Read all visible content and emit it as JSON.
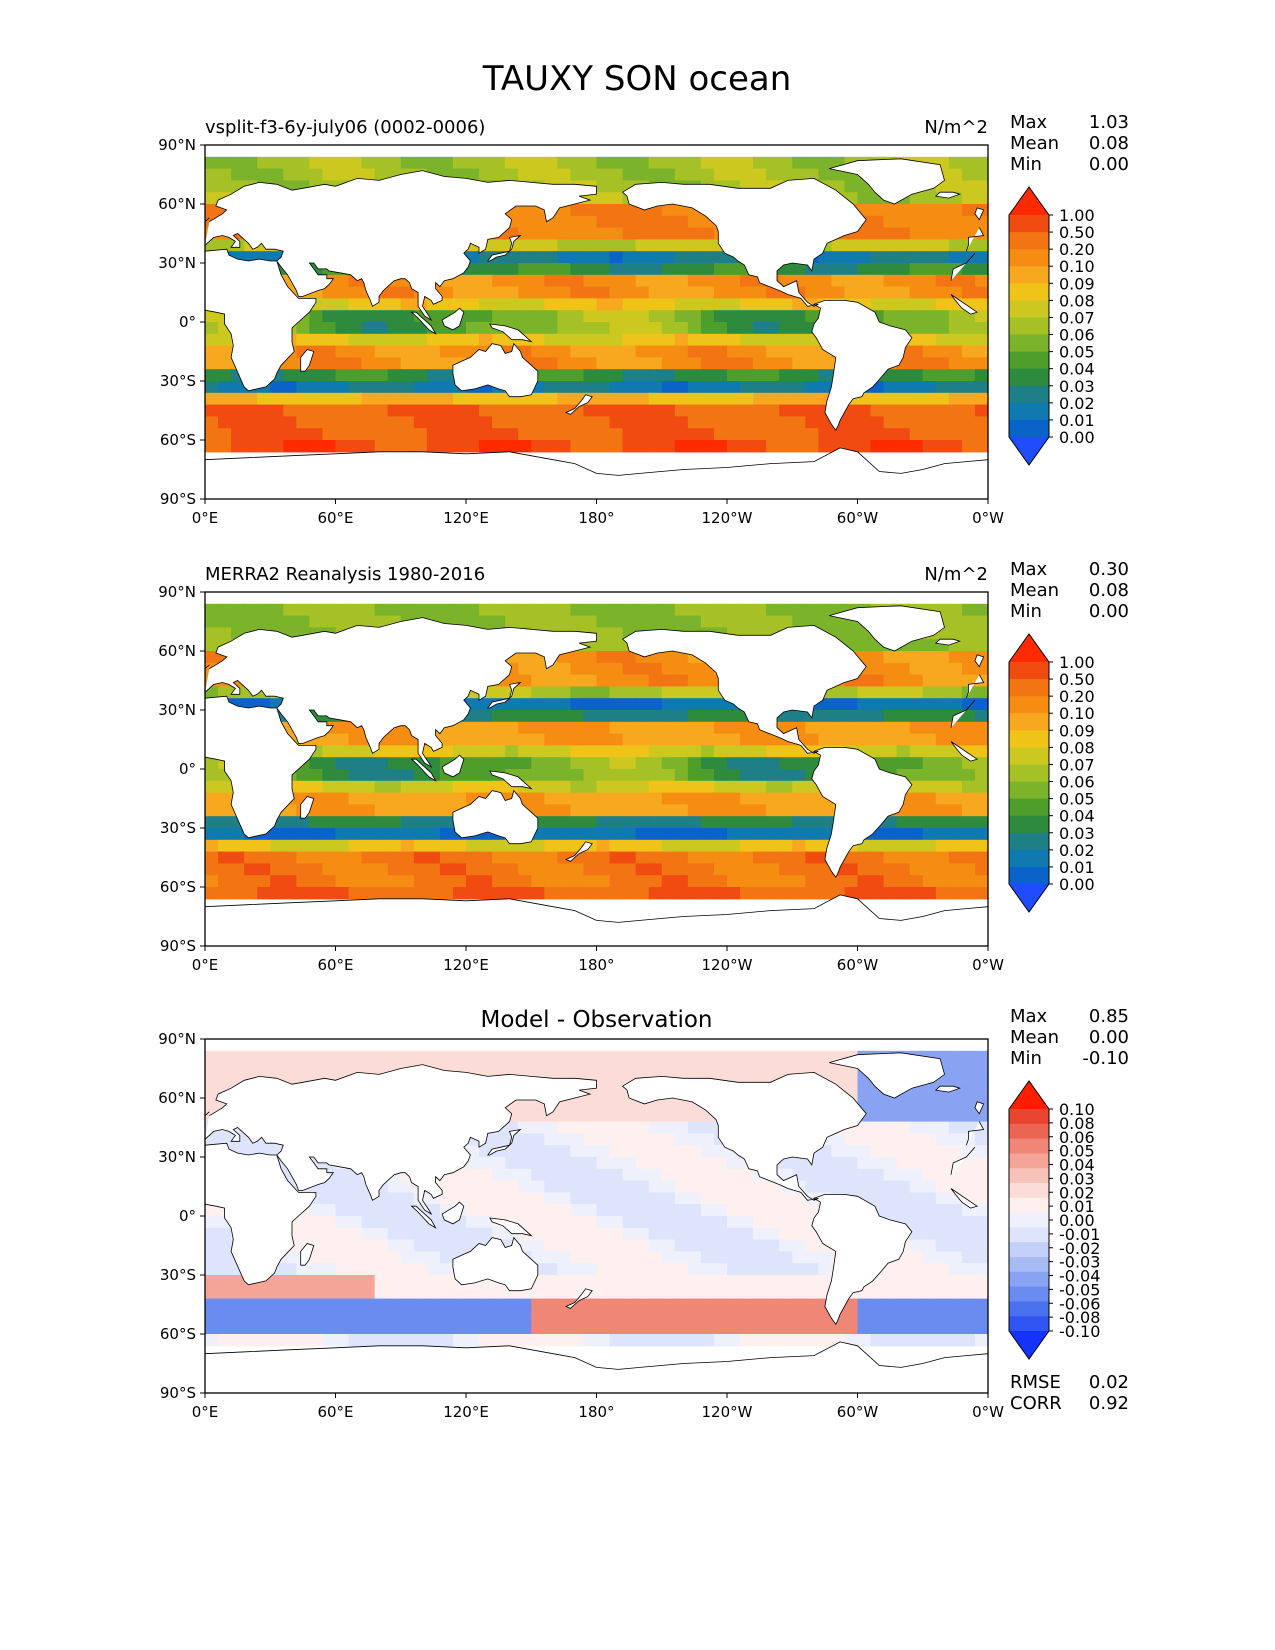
{
  "figure": {
    "title": "TAUXY SON ocean"
  },
  "colors": {
    "land": "#ffffff",
    "coast": "#000000",
    "seq_scale": [
      "#1f4cff",
      "#0a63c8",
      "#0e7ab0",
      "#1f7f86",
      "#2e8b3e",
      "#4f9e2c",
      "#7bb32a",
      "#a6c126",
      "#cdc81f",
      "#f0c318",
      "#f7a81e",
      "#f58d12",
      "#f27413",
      "#f04b10",
      "#ff2a00"
    ],
    "div_scale": [
      "#1433ff",
      "#2f56f2",
      "#4a72ee",
      "#6a8cf0",
      "#89a3f2",
      "#a7bbf5",
      "#c3d0f8",
      "#dde4fb",
      "#eef1fc",
      "#fdf0ee",
      "#fbdcd6",
      "#f8c2b8",
      "#f4a597",
      "#f08676",
      "#ec6552",
      "#e8442f",
      "#ff1f00"
    ]
  },
  "chart_data": [
    {
      "type": "heatmap",
      "title": "vsplit-f3-6y-july06 (0002-0006)",
      "units": "N/m^2",
      "stats": [
        {
          "label": "Max",
          "value": "1.03"
        },
        {
          "label": "Mean",
          "value": "0.08"
        },
        {
          "label": "Min",
          "value": "0.00"
        }
      ],
      "colorbar": {
        "scale": "sequential",
        "extend": "both",
        "levels": [
          "1.00",
          "0.50",
          "0.20",
          "0.10",
          "0.09",
          "0.08",
          "0.07",
          "0.06",
          "0.05",
          "0.04",
          "0.03",
          "0.02",
          "0.01",
          "0.00"
        ]
      },
      "x_ticks": [
        "0°E",
        "60°E",
        "120°E",
        "180°",
        "120°W",
        "60°W",
        "0°W"
      ],
      "y_ticks": [
        "90°N",
        "60°N",
        "30°N",
        "0°",
        "30°S",
        "60°S",
        "90°S"
      ],
      "xlim": [
        0,
        360
      ],
      "ylim": [
        -90,
        90
      ],
      "field": "model"
    },
    {
      "type": "heatmap",
      "title": "MERRA2 Reanalysis 1980-2016",
      "units": "N/m^2",
      "stats": [
        {
          "label": "Max",
          "value": "0.30"
        },
        {
          "label": "Mean",
          "value": "0.08"
        },
        {
          "label": "Min",
          "value": "0.00"
        }
      ],
      "colorbar": {
        "scale": "sequential",
        "extend": "both",
        "levels": [
          "1.00",
          "0.50",
          "0.20",
          "0.10",
          "0.09",
          "0.08",
          "0.07",
          "0.06",
          "0.05",
          "0.04",
          "0.03",
          "0.02",
          "0.01",
          "0.00"
        ]
      },
      "x_ticks": [
        "0°E",
        "60°E",
        "120°E",
        "180°",
        "120°W",
        "60°W",
        "0°W"
      ],
      "y_ticks": [
        "90°N",
        "60°N",
        "30°N",
        "0°",
        "30°S",
        "60°S",
        "90°S"
      ],
      "xlim": [
        0,
        360
      ],
      "ylim": [
        -90,
        90
      ],
      "field": "obs"
    },
    {
      "type": "heatmap",
      "title": "Model - Observation",
      "units": "",
      "stats": [
        {
          "label": "Max",
          "value": "0.85"
        },
        {
          "label": "Mean",
          "value": "0.00"
        },
        {
          "label": "Min",
          "value": "-0.10"
        }
      ],
      "metrics": [
        {
          "label": "RMSE",
          "value": "0.02"
        },
        {
          "label": "CORR",
          "value": "0.92"
        }
      ],
      "colorbar": {
        "scale": "diverging",
        "extend": "both",
        "levels": [
          "0.10",
          "0.08",
          "0.06",
          "0.05",
          "0.04",
          "0.03",
          "0.02",
          "0.01",
          "0.00",
          "-0.01",
          "-0.02",
          "-0.03",
          "-0.04",
          "-0.05",
          "-0.06",
          "-0.08",
          "-0.10"
        ]
      },
      "x_ticks": [
        "0°E",
        "60°E",
        "120°E",
        "180°",
        "120°W",
        "60°W",
        "0°W"
      ],
      "y_ticks": [
        "90°N",
        "60°N",
        "30°N",
        "0°",
        "30°S",
        "60°S",
        "90°S"
      ],
      "xlim": [
        0,
        360
      ],
      "ylim": [
        -90,
        90
      ],
      "field": "diff"
    }
  ]
}
